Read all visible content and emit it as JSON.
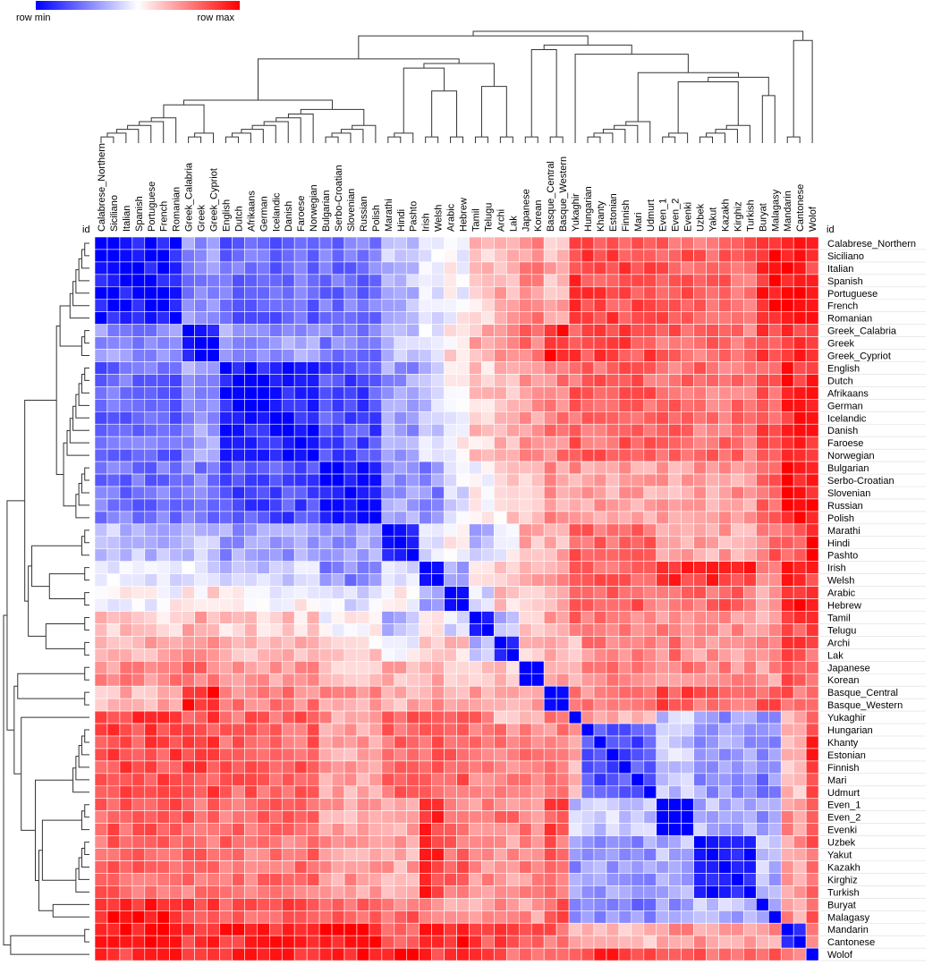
{
  "chart_data": {
    "type": "heatmap",
    "legend": {
      "min_label": "row min",
      "max_label": "row max",
      "placement": "top-left",
      "colors": [
        "#0000ff",
        "#ffffff",
        "#ff0000"
      ]
    },
    "corner_label_top": "id",
    "corner_label_right": "id",
    "labels": [
      "Calabrese_Northern",
      "Siciliano",
      "Italian",
      "Spanish",
      "Portuguese",
      "French",
      "Romanian",
      "Greek_Calabria",
      "Greek",
      "Greek_Cypriot",
      "English",
      "Dutch",
      "Afrikaans",
      "German",
      "Icelandic",
      "Danish",
      "Faroese",
      "Norwegian",
      "Bulgarian",
      "Serbo-Croatian",
      "Slovenian",
      "Russian",
      "Polish",
      "Marathi",
      "Hindi",
      "Pashto",
      "Irish",
      "Welsh",
      "Arabic",
      "Hebrew",
      "Tamil",
      "Telugu",
      "Archi",
      "Lak",
      "Japanese",
      "Korean",
      "Basque_Central",
      "Basque_Western",
      "Yukaghir",
      "Hungarian",
      "Khanty",
      "Estonian",
      "Finnish",
      "Mari",
      "Udmurt",
      "Even_1",
      "Even_2",
      "Evenki",
      "Uzbek",
      "Yakut",
      "Kazakh",
      "Kirghiz",
      "Turkish",
      "Buryat",
      "Malagasy",
      "Mandarin",
      "Cantonese",
      "Wolof"
    ],
    "groups": [
      0,
      0,
      0,
      0,
      0,
      0,
      0,
      1,
      1,
      1,
      2,
      2,
      2,
      2,
      2,
      2,
      2,
      2,
      3,
      3,
      3,
      3,
      3,
      4,
      4,
      4,
      5,
      5,
      6,
      6,
      7,
      7,
      8,
      8,
      9,
      9,
      10,
      10,
      11,
      12,
      12,
      12,
      12,
      12,
      12,
      13,
      13,
      13,
      14,
      14,
      14,
      14,
      14,
      15,
      16,
      17,
      17,
      18
    ],
    "group_relation": [
      [
        -0.9,
        -0.45,
        -0.6,
        -0.55,
        -0.25,
        -0.1,
        0.0,
        0.2,
        0.3,
        0.45,
        0.3,
        0.75,
        0.7,
        0.65,
        0.6,
        0.85,
        0.92,
        0.95,
        0.8
      ],
      [
        -0.45,
        -0.9,
        -0.4,
        -0.5,
        -0.2,
        -0.1,
        0.1,
        0.3,
        0.4,
        0.55,
        0.85,
        0.7,
        0.7,
        0.6,
        0.55,
        0.7,
        0.7,
        0.8,
        0.75
      ],
      [
        -0.6,
        -0.4,
        -0.9,
        -0.7,
        -0.4,
        -0.2,
        0.0,
        0.2,
        0.3,
        0.4,
        0.5,
        0.6,
        0.6,
        0.55,
        0.55,
        0.7,
        0.6,
        0.85,
        0.8
      ],
      [
        -0.55,
        -0.5,
        -0.7,
        -0.9,
        -0.4,
        -0.45,
        -0.1,
        0.0,
        0.15,
        0.2,
        0.4,
        0.4,
        0.35,
        0.35,
        0.4,
        0.6,
        0.6,
        0.95,
        0.85
      ],
      [
        -0.25,
        -0.2,
        -0.4,
        -0.4,
        -0.95,
        -0.1,
        0.0,
        -0.3,
        0.0,
        0.3,
        0.3,
        0.6,
        0.6,
        0.35,
        0.35,
        0.4,
        0.6,
        0.6,
        0.95
      ],
      [
        -0.1,
        -0.1,
        -0.2,
        -0.45,
        -0.1,
        -0.95,
        -0.3,
        0.0,
        0.2,
        0.3,
        0.4,
        0.6,
        0.6,
        0.8,
        0.8,
        0.4,
        0.4,
        0.9,
        0.8
      ],
      [
        0.0,
        0.1,
        0.0,
        -0.1,
        0.0,
        -0.3,
        -0.95,
        -0.1,
        0.2,
        0.3,
        0.3,
        0.6,
        0.6,
        0.5,
        0.6,
        0.4,
        0.5,
        0.9,
        0.8
      ],
      [
        0.2,
        0.3,
        0.2,
        0.0,
        -0.3,
        0.0,
        -0.1,
        -0.95,
        -0.3,
        0.2,
        0.4,
        0.6,
        0.5,
        0.45,
        0.4,
        0.4,
        0.5,
        0.7,
        0.85
      ],
      [
        0.3,
        0.4,
        0.3,
        0.15,
        0.0,
        0.2,
        0.2,
        -0.3,
        -0.95,
        0.2,
        0.4,
        0.3,
        0.5,
        0.5,
        0.4,
        0.4,
        0.4,
        0.8,
        0.6
      ],
      [
        0.45,
        0.55,
        0.4,
        0.2,
        0.3,
        0.3,
        0.3,
        0.2,
        0.2,
        -0.95,
        0.3,
        0.4,
        0.5,
        0.5,
        0.45,
        0.4,
        0.4,
        0.7,
        0.6
      ],
      [
        0.3,
        0.85,
        0.5,
        0.4,
        0.3,
        0.4,
        0.3,
        0.4,
        0.4,
        0.3,
        -0.95,
        0.5,
        0.5,
        0.7,
        0.6,
        0.6,
        0.7,
        0.6,
        0.7
      ],
      [
        0.75,
        0.7,
        0.6,
        0.4,
        0.6,
        0.6,
        0.6,
        0.6,
        0.3,
        0.4,
        0.5,
        -0.95,
        0.3,
        -0.2,
        -0.4,
        -0.5,
        -0.4,
        0.3,
        0.6
      ],
      [
        0.7,
        0.7,
        0.6,
        0.35,
        0.6,
        0.6,
        0.6,
        0.5,
        0.5,
        0.5,
        0.5,
        0.3,
        -0.7,
        -0.2,
        -0.4,
        -0.5,
        -0.4,
        0.3,
        0.8
      ],
      [
        0.65,
        0.6,
        0.55,
        0.35,
        0.35,
        0.8,
        0.5,
        0.45,
        0.5,
        0.5,
        0.7,
        -0.2,
        -0.2,
        -0.95,
        -0.3,
        -0.4,
        -0.3,
        0.4,
        0.7
      ],
      [
        0.6,
        0.55,
        0.55,
        0.4,
        0.35,
        0.8,
        0.6,
        0.4,
        0.4,
        0.45,
        0.6,
        -0.4,
        -0.4,
        -0.3,
        -0.9,
        -0.2,
        -0.3,
        0.4,
        0.6
      ],
      [
        0.85,
        0.7,
        0.7,
        0.6,
        0.4,
        0.4,
        0.4,
        0.4,
        0.4,
        0.4,
        0.6,
        -0.5,
        -0.5,
        -0.4,
        -0.2,
        -0.95,
        -0.3,
        0.4,
        0.6
      ],
      [
        0.92,
        0.7,
        0.6,
        0.6,
        0.6,
        0.4,
        0.5,
        0.5,
        0.4,
        0.4,
        0.7,
        -0.4,
        -0.4,
        -0.3,
        -0.3,
        -0.3,
        -0.95,
        0.4,
        0.7
      ],
      [
        0.95,
        0.8,
        0.85,
        0.95,
        0.6,
        0.9,
        0.9,
        0.7,
        0.8,
        0.7,
        0.6,
        0.3,
        0.3,
        0.4,
        0.4,
        0.4,
        0.4,
        -0.85,
        0.5
      ],
      [
        0.8,
        0.75,
        0.8,
        0.85,
        0.95,
        0.8,
        0.8,
        0.85,
        0.6,
        0.6,
        0.7,
        0.6,
        0.8,
        0.7,
        0.6,
        0.6,
        0.7,
        0.5,
        -0.95
      ]
    ],
    "axis_order": "same labels on rows (right side) and columns (top)",
    "row_dendrogram": "left side",
    "column_dendrogram": "top side",
    "grid": true
  }
}
